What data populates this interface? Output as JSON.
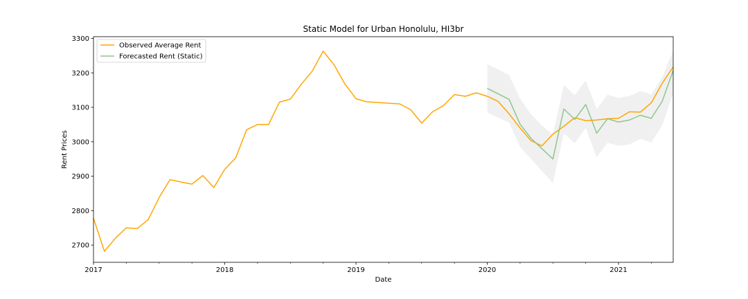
{
  "chart_data": {
    "type": "line",
    "title": "Static Model for Urban Honolulu, HI3br",
    "xlabel": "Date",
    "ylabel": "Rent Prices",
    "xlim": [
      "2017-01",
      "2021-06"
    ],
    "ylim": [
      2650,
      3305
    ],
    "x_tick_labels": [
      "2017",
      "2018",
      "2019",
      "2020",
      "2021"
    ],
    "y_tick_labels": [
      "2700",
      "2800",
      "2900",
      "3000",
      "3100",
      "3200",
      "3300"
    ],
    "grid": false,
    "legend_position": "top-left",
    "series": [
      {
        "name": "Observed Average Rent",
        "color": "#ffa500",
        "x": [
          "2017-01",
          "2017-02",
          "2017-03",
          "2017-04",
          "2017-05",
          "2017-06",
          "2017-07",
          "2017-08",
          "2017-09",
          "2017-10",
          "2017-11",
          "2017-12",
          "2018-01",
          "2018-02",
          "2018-03",
          "2018-04",
          "2018-05",
          "2018-06",
          "2018-07",
          "2018-08",
          "2018-09",
          "2018-10",
          "2018-11",
          "2018-12",
          "2019-01",
          "2019-02",
          "2019-03",
          "2019-04",
          "2019-05",
          "2019-06",
          "2019-07",
          "2019-08",
          "2019-09",
          "2019-10",
          "2019-11",
          "2019-12",
          "2020-01",
          "2020-02",
          "2020-03",
          "2020-04",
          "2020-05",
          "2020-06",
          "2020-07",
          "2020-08",
          "2020-09",
          "2020-10",
          "2020-11",
          "2020-12",
          "2021-01",
          "2021-02",
          "2021-03",
          "2021-04",
          "2021-05",
          "2021-06"
        ],
        "values": [
          2778,
          2682,
          2720,
          2750,
          2748,
          2774,
          2838,
          2890,
          2883,
          2877,
          2902,
          2867,
          2920,
          2953,
          3035,
          3050,
          3050,
          3115,
          3124,
          3167,
          3205,
          3263,
          3223,
          3167,
          3125,
          3116,
          3114,
          3112,
          3110,
          3093,
          3054,
          3087,
          3105,
          3137,
          3132,
          3142,
          3132,
          3117,
          3081,
          3040,
          3003,
          2988,
          3022,
          3045,
          3070,
          3061,
          3063,
          3067,
          3068,
          3087,
          3086,
          3113,
          3170,
          3217
        ]
      },
      {
        "name": "Forecasted Rent (Static)",
        "color": "#8fc58f",
        "x": [
          "2020-01",
          "2020-02",
          "2020-03",
          "2020-04",
          "2020-05",
          "2020-06",
          "2020-07",
          "2020-08",
          "2020-09",
          "2020-10",
          "2020-11",
          "2020-12",
          "2021-01",
          "2021-02",
          "2021-03",
          "2021-04",
          "2021-05",
          "2021-06"
        ],
        "values": [
          3155,
          3139,
          3123,
          3051,
          3010,
          2980,
          2950,
          3095,
          3065,
          3108,
          3025,
          3067,
          3057,
          3063,
          3077,
          3068,
          3118,
          3207
        ],
        "ci_lower": [
          3085,
          3070,
          3055,
          2985,
          2950,
          2915,
          2880,
          3025,
          2995,
          3040,
          2955,
          2997,
          2988,
          2992,
          3008,
          2998,
          3048,
          3140
        ],
        "ci_upper": [
          3225,
          3210,
          3193,
          3125,
          3080,
          3047,
          3020,
          3165,
          3135,
          3178,
          3095,
          3137,
          3127,
          3133,
          3147,
          3138,
          3188,
          3265
        ]
      }
    ]
  }
}
